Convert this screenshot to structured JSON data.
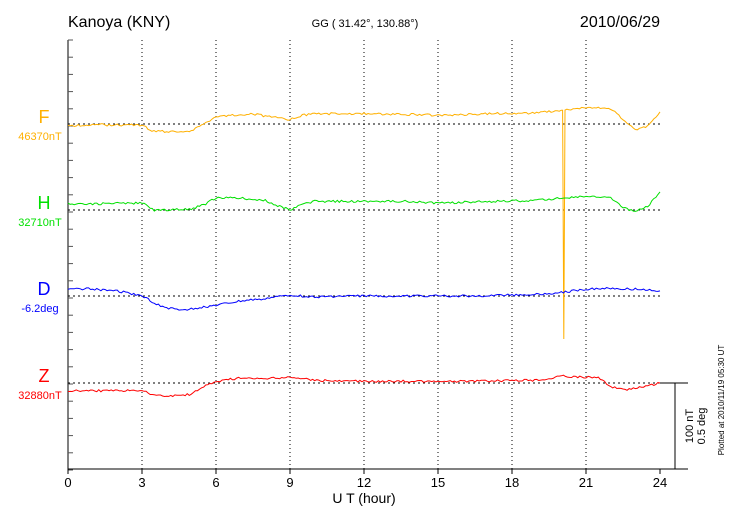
{
  "chart_data": {
    "type": "line",
    "title": "Kanoya (KNY)",
    "subtitle": "GG ( 31.42°, 130.88°)",
    "date": "2010/06/29",
    "xlabel": "U T (hour)",
    "xlim": [
      0,
      24
    ],
    "xticks": [
      "0",
      "3",
      "6",
      "9",
      "12",
      "15",
      "18",
      "21",
      "24"
    ],
    "scale_label_1": "100 nT",
    "scale_label_2": "0.5 deg",
    "plotted_note": "Plotted at 2010/11/19 05:30 UT",
    "series": [
      {
        "name": "F",
        "baseline": "46370nT",
        "color": "#ffb000",
        "units": "nT offset",
        "x": [
          0,
          1,
          2,
          3,
          3.4,
          4,
          5,
          5.5,
          6,
          7,
          7.5,
          8,
          9,
          9.5,
          10,
          12,
          14,
          15,
          17,
          19,
          20,
          20.05,
          20.1,
          20.15,
          20.3,
          21,
          22,
          22.5,
          23,
          23.5,
          24
        ],
        "y": [
          -2,
          -1,
          -1,
          -1,
          -8,
          -9,
          -8,
          0,
          9,
          11,
          12,
          9,
          5,
          10,
          12,
          12,
          11,
          10,
          12,
          13,
          16,
          16,
          -250,
          16,
          17,
          19,
          18,
          5,
          -7,
          -2,
          14
        ]
      },
      {
        "name": "H",
        "baseline": "32710nT",
        "color": "#00e000",
        "units": "nT offset",
        "x": [
          0,
          1,
          2,
          3,
          3.5,
          4,
          5,
          5.5,
          6,
          7,
          8,
          8.5,
          9,
          9.5,
          10,
          12,
          14,
          15,
          17,
          19,
          20,
          21,
          22,
          22.5,
          23,
          23.5,
          24
        ],
        "y": [
          7,
          7,
          8,
          8,
          0,
          0,
          1,
          6,
          14,
          14,
          11,
          5,
          0,
          7,
          10,
          10,
          10,
          8,
          10,
          11,
          14,
          16,
          14,
          3,
          -2,
          4,
          21
        ]
      },
      {
        "name": "D",
        "baseline": "-6.2deg",
        "color": "#0000ff",
        "units": "deg offset",
        "x": [
          0,
          1,
          2,
          3,
          3.5,
          4,
          4.5,
          5,
          6,
          7,
          8,
          9,
          10,
          12,
          14,
          16,
          18,
          19,
          20,
          21,
          22,
          23,
          24
        ],
        "y": [
          0.045,
          0.04,
          0.03,
          0.0,
          -0.04,
          -0.07,
          -0.08,
          -0.075,
          -0.055,
          -0.03,
          -0.015,
          0.005,
          -0.005,
          0.0,
          0.0,
          0.0,
          0.005,
          0.01,
          0.02,
          0.04,
          0.045,
          0.04,
          0.03
        ]
      },
      {
        "name": "Z",
        "baseline": "32880nT",
        "color": "#ff0000",
        "units": "nT offset",
        "x": [
          0,
          1,
          2,
          3,
          3.5,
          4,
          5,
          5.5,
          6,
          7,
          8,
          9,
          10,
          12,
          14,
          16,
          18,
          19,
          20,
          21,
          21.5,
          22,
          22.5,
          23,
          24
        ],
        "y": [
          -9,
          -9,
          -9,
          -9,
          -14,
          -15,
          -13,
          -4,
          2,
          6,
          5,
          7,
          3,
          2,
          2,
          2,
          3,
          3,
          8,
          7,
          7,
          -4,
          -8,
          -6,
          0
        ]
      }
    ]
  }
}
